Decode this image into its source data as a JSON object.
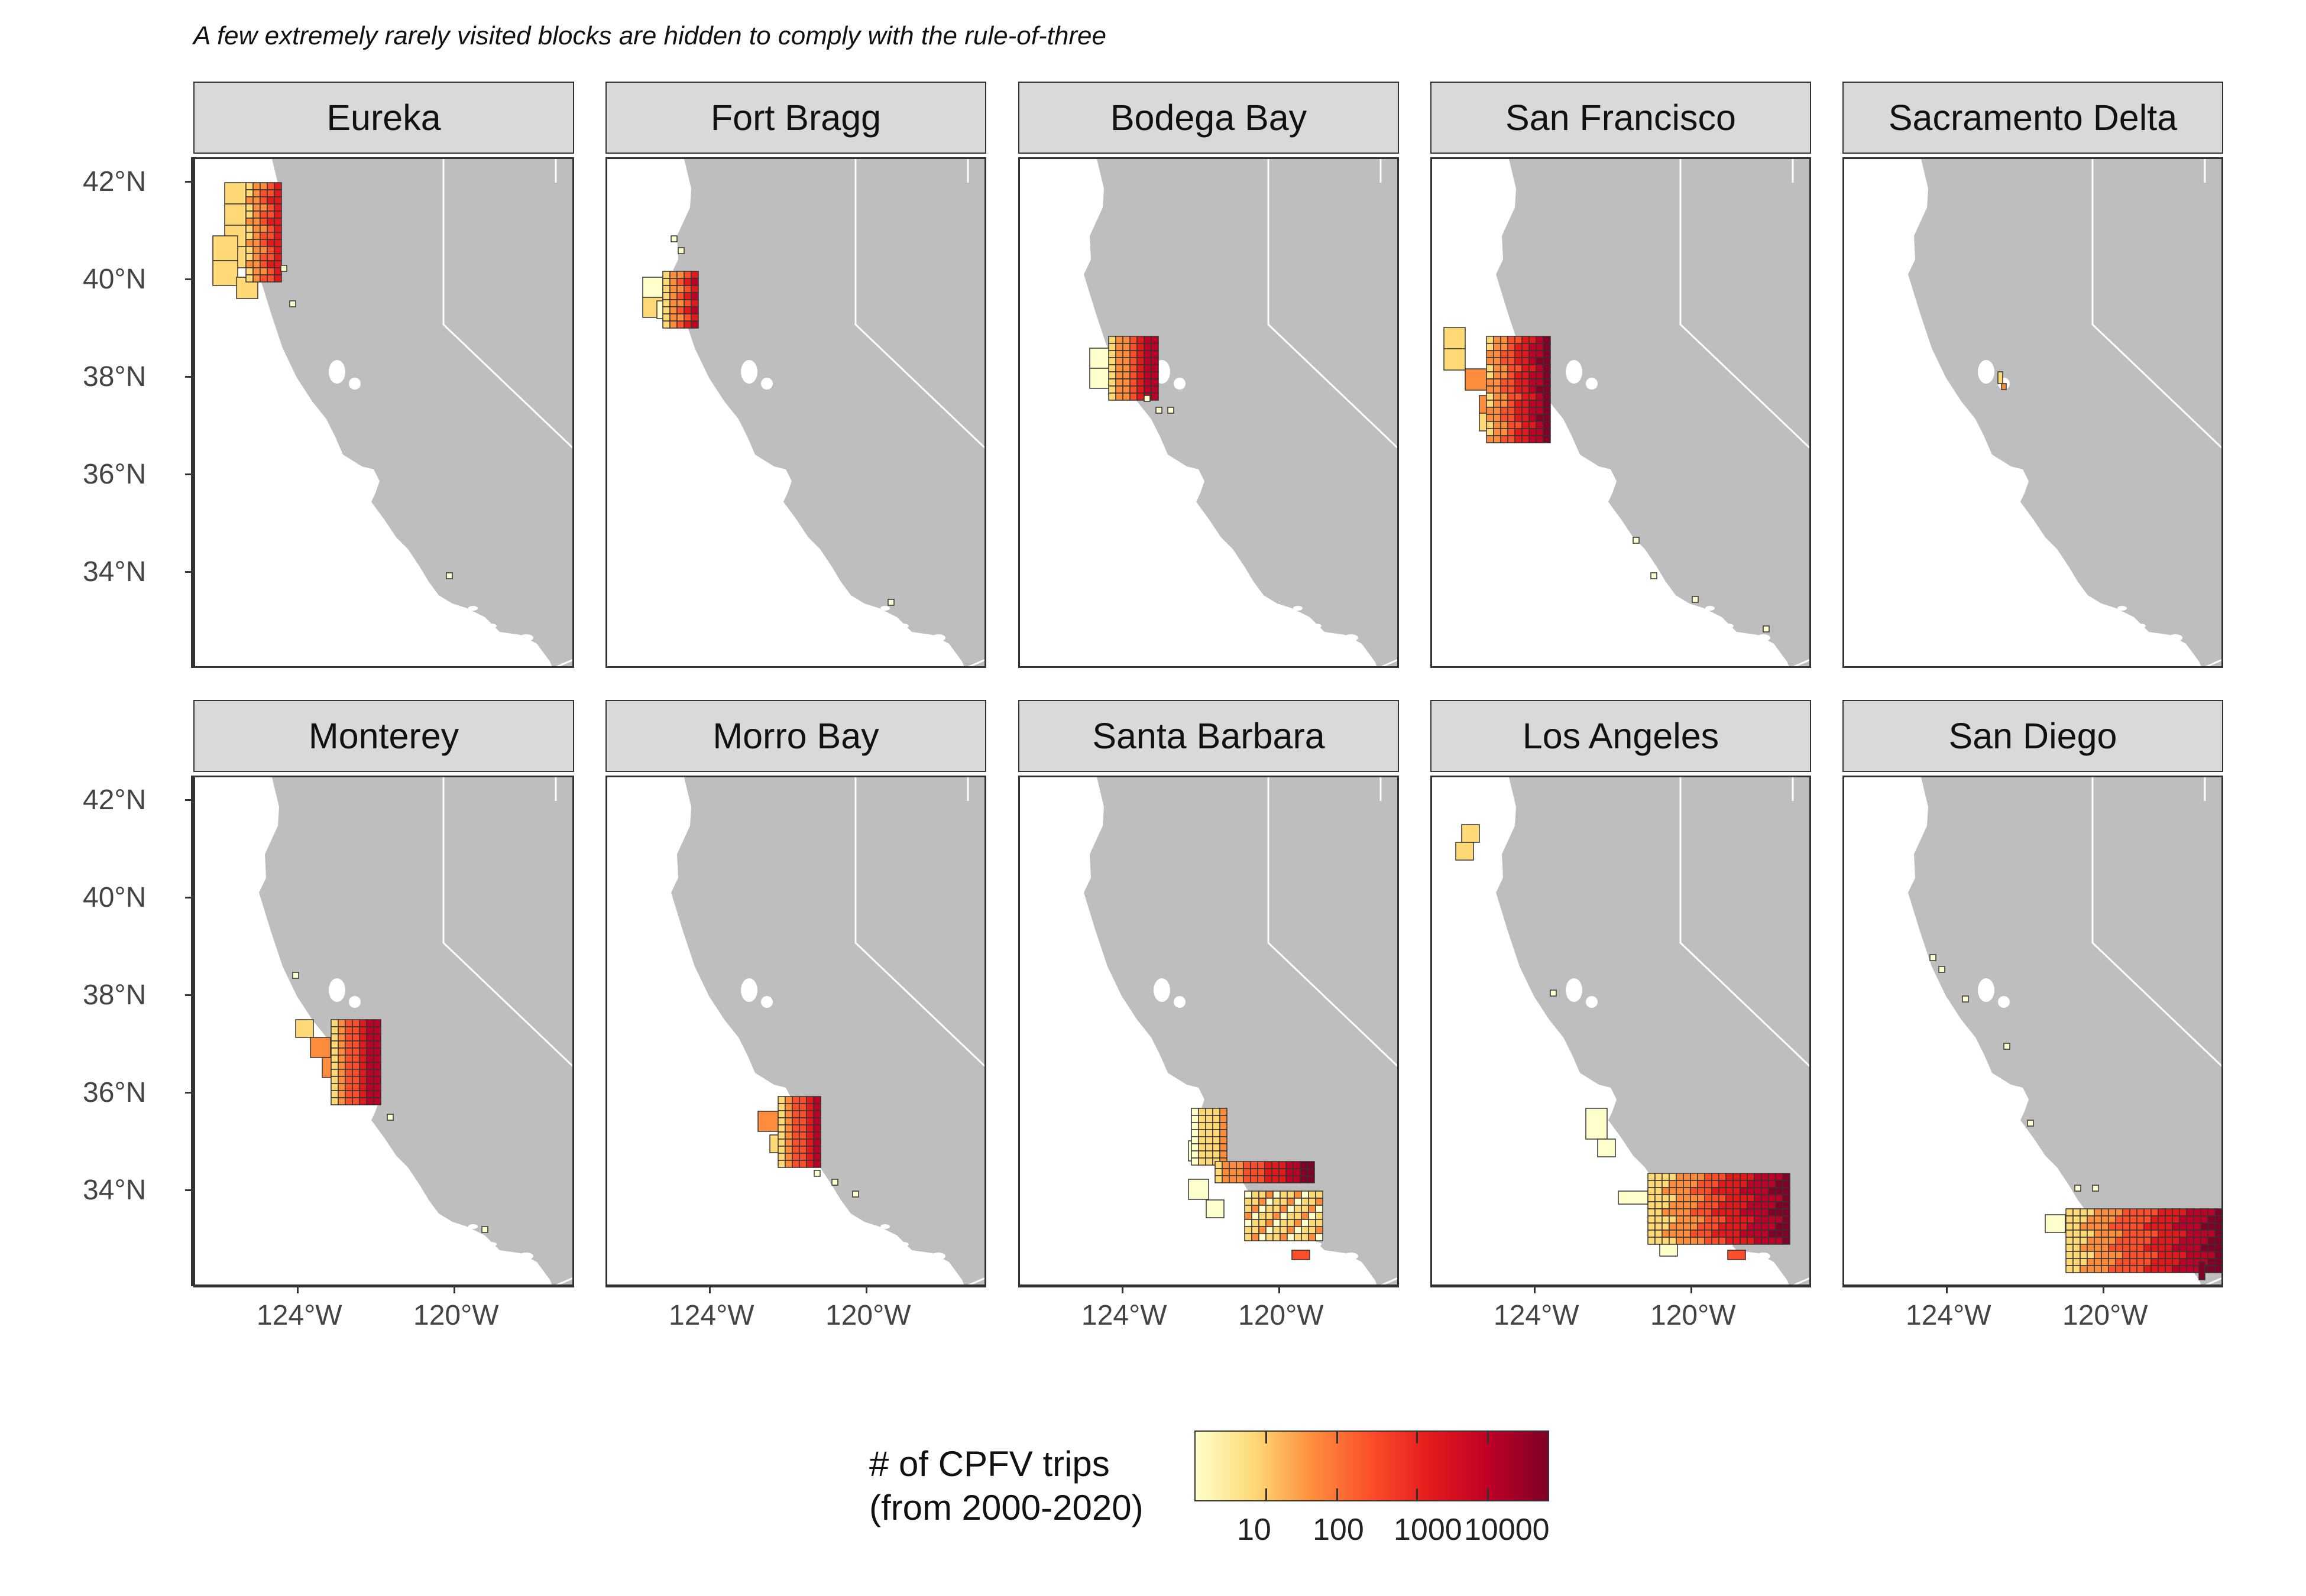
{
  "caption": "A few extremely rarely visited blocks are hidden to comply with the rule-of-three",
  "y_ticks": [
    "42°N",
    "40°N",
    "38°N",
    "36°N",
    "34°N"
  ],
  "x_ticks": [
    "124°W",
    "120°W"
  ],
  "colors": {
    "land": "#bebebe",
    "border": "#ffffff",
    "frame": "#333333",
    "strip": "#d9d9d9",
    "scale": [
      "#ffffcc",
      "#fed976",
      "#fd8d3c",
      "#fc4e2a",
      "#e31a1c",
      "#bd0026",
      "#800026"
    ]
  },
  "legend": {
    "title_line1": "# of CPFV trips",
    "title_line2": "(from 2000-2020)",
    "labels": [
      "10",
      "100",
      "1000",
      "10000"
    ]
  },
  "panels": [
    {
      "name": "Eureka"
    },
    {
      "name": "Fort Bragg"
    },
    {
      "name": "Bodega Bay"
    },
    {
      "name": "San Francisco"
    },
    {
      "name": "Sacramento Delta"
    },
    {
      "name": "Monterey"
    },
    {
      "name": "Morro Bay"
    },
    {
      "name": "Santa Barbara"
    },
    {
      "name": "Los Angeles"
    },
    {
      "name": "San Diego"
    }
  ]
}
